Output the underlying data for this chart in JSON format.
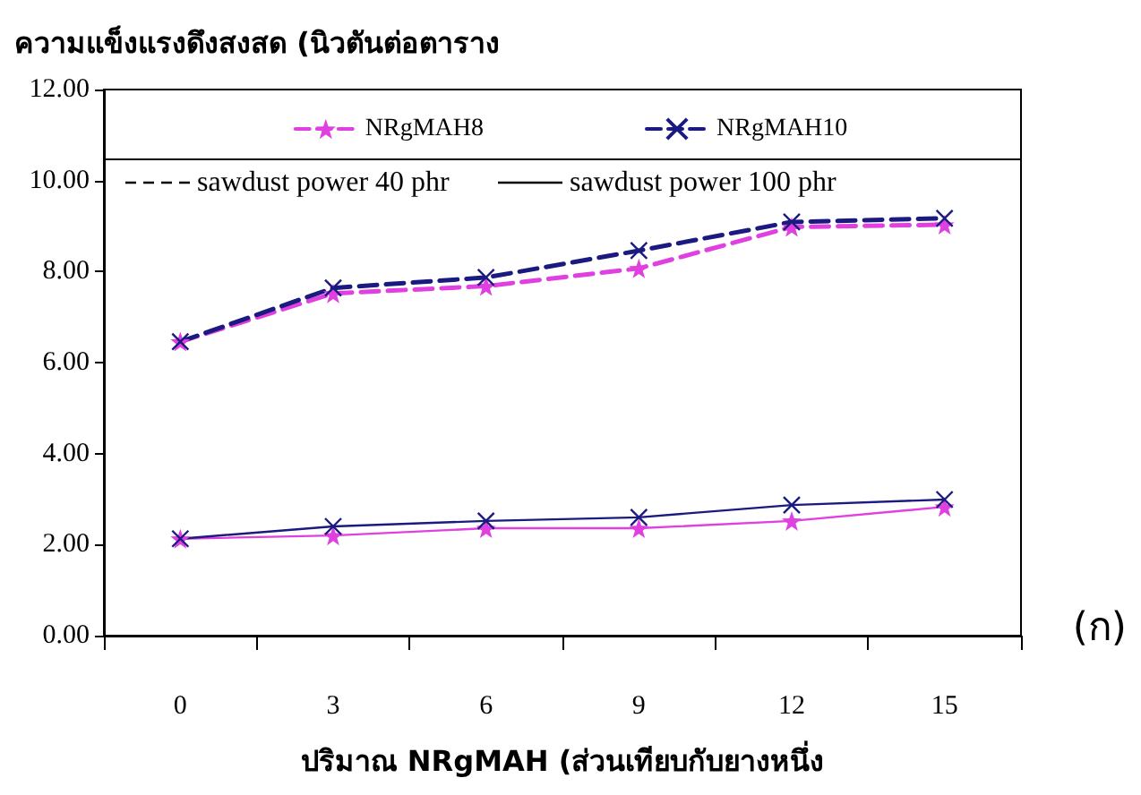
{
  "chart_data": {
    "type": "line",
    "ylabel": "ความแข็งแรงดึงสงสด (นิวตันต่อตาราง",
    "xlabel": "ปริมาณ NRgMAH (ส่วนเทียบกับยางหนึ่ง",
    "categories": [
      "0",
      "3",
      "6",
      "9",
      "12",
      "15"
    ],
    "ylim": [
      0,
      12
    ],
    "yticks": [
      {
        "value": 0,
        "label": "0.00"
      },
      {
        "value": 2,
        "label": "2.00"
      },
      {
        "value": 4,
        "label": "4.00"
      },
      {
        "value": 6,
        "label": "6.00"
      },
      {
        "value": 8,
        "label": "8.00"
      },
      {
        "value": 10,
        "label": "10.00"
      },
      {
        "value": 12,
        "label": "12.00"
      }
    ],
    "grid": false,
    "legend": "top",
    "series": [
      {
        "name": "NRgMAH8",
        "color": "#e040e0",
        "marker": "star",
        "line_style": "dashed",
        "values": [
          6.46,
          7.52,
          7.68,
          8.07,
          8.98,
          9.03
        ]
      },
      {
        "name": "NRgMAH10",
        "color": "#1a1a80",
        "marker": "cross",
        "line_style": "dashed",
        "values": [
          6.46,
          7.64,
          7.87,
          8.46,
          9.09,
          9.17
        ]
      },
      {
        "color": "#e040e0",
        "marker": "star",
        "line_style": "solid",
        "values": [
          2.13,
          2.2,
          2.36,
          2.36,
          2.52,
          2.83
        ]
      },
      {
        "color": "#1a1a80",
        "marker": "cross",
        "line_style": "solid",
        "values": [
          2.13,
          2.4,
          2.52,
          2.6,
          2.87,
          2.99
        ]
      }
    ],
    "annotations": [
      "sawdust power 40 phr",
      "sawdust power 100 phr",
      "(ก)"
    ]
  }
}
